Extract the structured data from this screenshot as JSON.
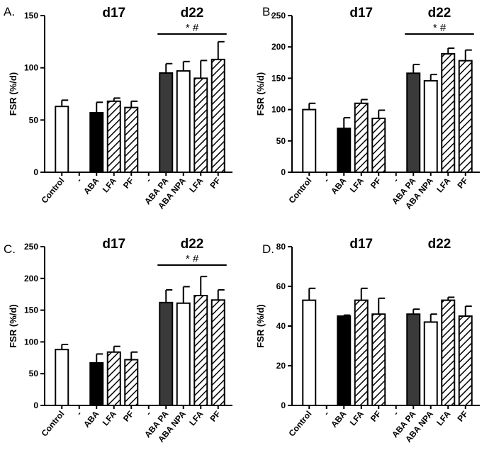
{
  "chart_data": [
    {
      "panel": "A.",
      "type": "bar",
      "ylabel": "FSR (%/d)",
      "ylim": [
        0,
        150
      ],
      "yticks": [
        0,
        50,
        100,
        150
      ],
      "groups": [
        {
          "label": "d17"
        },
        {
          "label": "d22"
        }
      ],
      "significance": "* #",
      "categories": [
        "Control",
        "-",
        "ABA",
        "LFA",
        "PF",
        "-",
        "ABA PA",
        "ABA NPA",
        "LFA",
        "PF"
      ],
      "values": [
        63,
        null,
        57,
        68,
        62,
        null,
        95,
        97,
        90,
        108
      ],
      "errors": [
        6,
        null,
        10,
        3,
        6,
        null,
        9,
        9,
        17,
        17
      ],
      "fills": [
        "white",
        "none",
        "black",
        "hatch",
        "hatch",
        "none",
        "dark",
        "white",
        "hatch",
        "hatch"
      ]
    },
    {
      "panel": "B.",
      "type": "bar",
      "ylabel": "FSR (%/d)",
      "ylim": [
        0,
        250
      ],
      "yticks": [
        0,
        50,
        100,
        150,
        200,
        250
      ],
      "groups": [
        {
          "label": "d17"
        },
        {
          "label": "d22"
        }
      ],
      "significance": "* #",
      "categories": [
        "Control",
        "-",
        "ABA",
        "LFA",
        "PF",
        "-",
        "ABA PA",
        "ABA NPA",
        "LFA",
        "PF"
      ],
      "values": [
        100,
        null,
        70,
        110,
        86,
        null,
        158,
        146,
        189,
        178
      ],
      "errors": [
        10,
        null,
        17,
        6,
        13,
        null,
        14,
        10,
        9,
        17
      ],
      "fills": [
        "white",
        "none",
        "black",
        "hatch",
        "hatch",
        "none",
        "dark",
        "white",
        "hatch",
        "hatch"
      ]
    },
    {
      "panel": "C.",
      "type": "bar",
      "ylabel": "FSR (%/d)",
      "ylim": [
        0,
        250
      ],
      "yticks": [
        0,
        50,
        100,
        150,
        200,
        250
      ],
      "groups": [
        {
          "label": "d17"
        },
        {
          "label": "d22"
        }
      ],
      "significance": "* #",
      "categories": [
        "Control",
        "-",
        "ABA",
        "LFA",
        "PF",
        "-",
        "ABA PA",
        "ABA NPA",
        "LFA",
        "PF"
      ],
      "values": [
        88,
        null,
        67,
        84,
        72,
        null,
        162,
        161,
        173,
        166
      ],
      "errors": [
        8,
        null,
        14,
        9,
        12,
        null,
        20,
        26,
        30,
        16
      ],
      "fills": [
        "white",
        "none",
        "black",
        "hatch",
        "hatch",
        "none",
        "dark",
        "white",
        "hatch",
        "hatch"
      ]
    },
    {
      "panel": "D.",
      "type": "bar",
      "ylabel": "FSR (%/d)",
      "ylim": [
        0,
        80
      ],
      "yticks": [
        0,
        20,
        40,
        60,
        80
      ],
      "groups": [
        {
          "label": "d17"
        },
        {
          "label": "d22"
        }
      ],
      "significance": "",
      "categories": [
        "Control",
        "-",
        "ABA",
        "LFA",
        "PF",
        "-",
        "ABA PA",
        "ABA NPA",
        "LFA",
        "PF"
      ],
      "values": [
        53,
        null,
        45,
        53,
        46,
        null,
        46,
        42,
        53,
        45
      ],
      "errors": [
        6,
        null,
        0.5,
        6,
        8,
        null,
        2.5,
        4,
        1.5,
        5
      ],
      "fills": [
        "white",
        "none",
        "black",
        "hatch",
        "hatch",
        "none",
        "dark",
        "white",
        "hatch",
        "hatch"
      ]
    }
  ]
}
